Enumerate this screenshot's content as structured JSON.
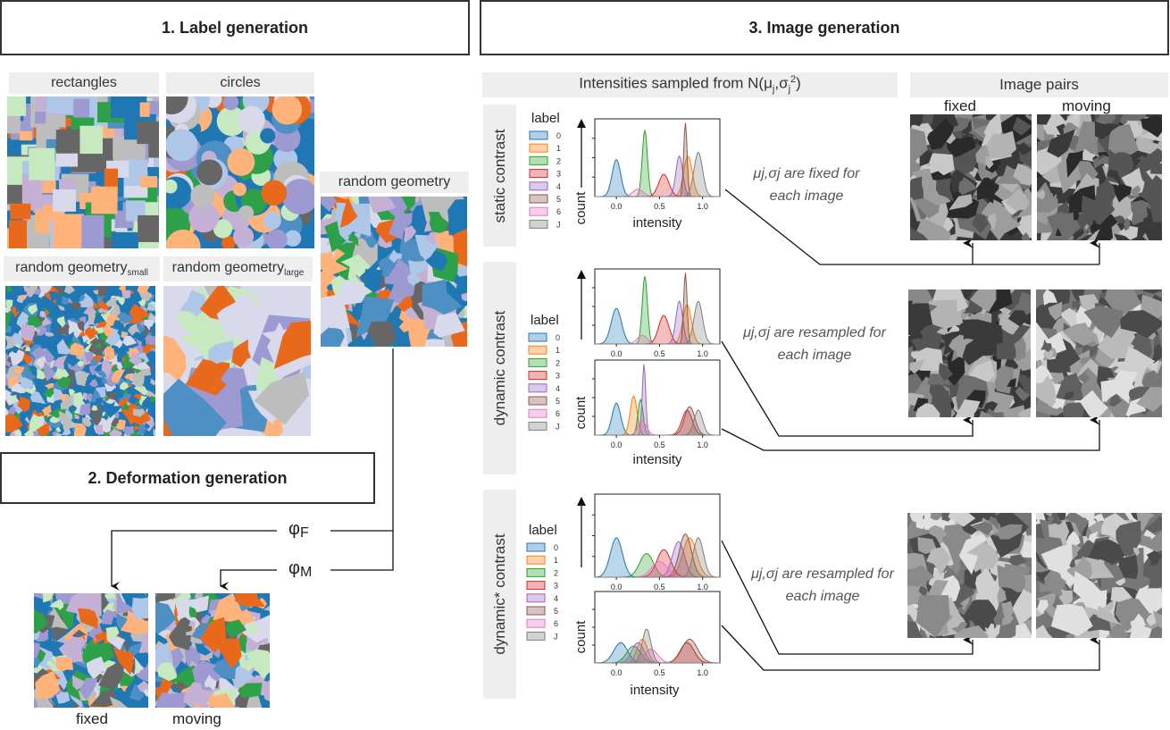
{
  "sections": {
    "label_generation": "1. Label generation",
    "deformation_generation": "2. Deformation generation",
    "image_generation": "3. Image generation"
  },
  "label_maps": {
    "rectangles": "rectangles",
    "circles": "circles",
    "random_geometry": "random geometry",
    "random_geometry_small_base": "random geometry",
    "random_geometry_small_sub": "small",
    "random_geometry_large_base": "random geometry",
    "random_geometry_large_sub": "large"
  },
  "deformation": {
    "phi_f": "φ",
    "phi_f_sub": "F",
    "phi_m": "φ",
    "phi_m_sub": "M",
    "fixed": "fixed",
    "moving": "moving"
  },
  "image_gen": {
    "intensities_header_base": "Intensities sampled from N(μ",
    "intensities_header_sub1": "j",
    "intensities_header_mid": ",σ",
    "intensities_header_sub2": "j",
    "intensities_header_sup": "2",
    "intensities_header_end": ")",
    "image_pairs_header": "Image pairs",
    "fixed": "fixed",
    "moving": "moving",
    "rows": [
      {
        "contrast": "static contrast",
        "note_line1": "μj,σj are fixed for",
        "note_line2": "each image"
      },
      {
        "contrast": "dynamic contrast",
        "note_line1": "μj,σj are resampled for",
        "note_line2": "each image"
      },
      {
        "contrast": "dynamic* contrast",
        "note_line1": "μj,σj are resampled for",
        "note_line2": "each image"
      }
    ]
  },
  "legend": {
    "title": "label",
    "entries": [
      "0",
      "1",
      "2",
      "3",
      "4",
      "5",
      "6",
      "J"
    ],
    "colors": [
      "#1f77b4",
      "#ff7f0e",
      "#2ca02c",
      "#d62728",
      "#9467bd",
      "#8c564b",
      "#e377c2",
      "#7f7f7f"
    ]
  },
  "chart_axes": {
    "ylabel": "count",
    "xlabel": "intensity",
    "xticks": [
      "0.0",
      "0.5",
      "1.0"
    ]
  },
  "palette": [
    "#1f77b4",
    "#e8681c",
    "#2fa04a",
    "#9c9ad0",
    "#666666",
    "#aec7e8",
    "#ffb27a",
    "#c7e9c0",
    "#c5b0d5",
    "#bdbdbd",
    "#d9d9ec",
    "#4e8fc4"
  ]
}
